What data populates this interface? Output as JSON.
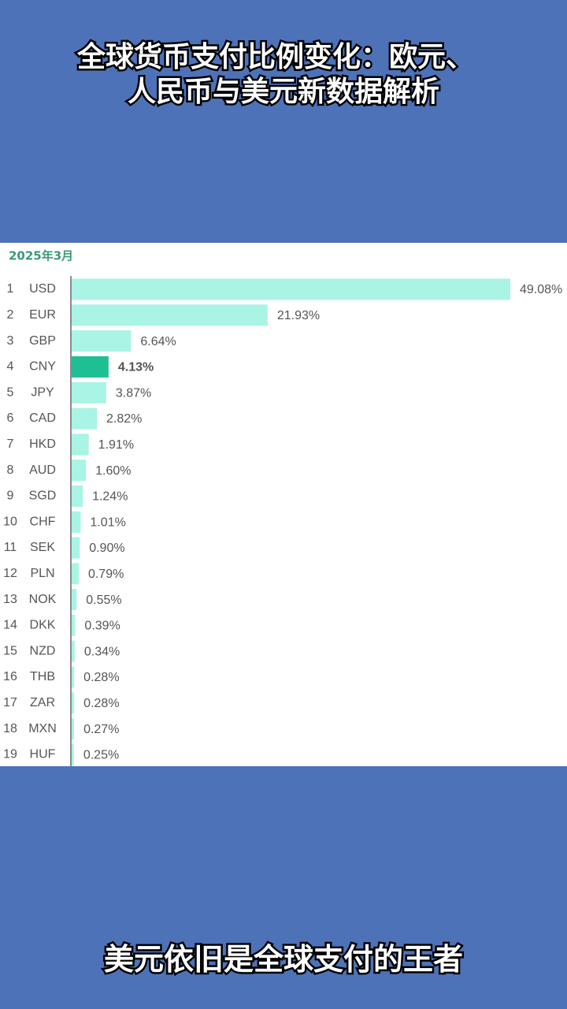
{
  "header": {
    "title_lines": [
      "全球货币支付比例变化：欧元、",
      "人民币与美元新数据解析"
    ]
  },
  "chart_data": {
    "type": "bar",
    "orientation": "horizontal",
    "title": "2025年3月",
    "ranks": [
      1,
      2,
      3,
      4,
      5,
      6,
      7,
      8,
      9,
      10,
      11,
      12,
      13,
      14,
      15,
      16,
      17,
      18,
      19
    ],
    "categories": [
      "USD",
      "EUR",
      "GBP",
      "CNY",
      "JPY",
      "CAD",
      "HKD",
      "AUD",
      "SGD",
      "CHF",
      "SEK",
      "PLN",
      "NOK",
      "DKK",
      "NZD",
      "THB",
      "ZAR",
      "MXN",
      "HUF"
    ],
    "values": [
      49.08,
      21.93,
      6.64,
      4.13,
      3.87,
      2.82,
      1.91,
      1.6,
      1.24,
      1.01,
      0.9,
      0.79,
      0.55,
      0.39,
      0.34,
      0.28,
      0.28,
      0.27,
      0.25
    ],
    "value_labels": [
      "49.08%",
      "21.93%",
      "6.64%",
      "4.13%",
      "3.87%",
      "2.82%",
      "1.91%",
      "1.60%",
      "1.24%",
      "1.01%",
      "0.90%",
      "0.79%",
      "0.55%",
      "0.39%",
      "0.34%",
      "0.28%",
      "0.28%",
      "0.27%",
      "0.25%"
    ],
    "colors": [
      "#a9f4e4",
      "#a9f4e4",
      "#a9f4e4",
      "#1fbf94",
      "#a9f4e4",
      "#a9f4e4",
      "#a9f4e4",
      "#a9f4e4",
      "#a9f4e4",
      "#a9f4e4",
      "#a9f4e4",
      "#a9f4e4",
      "#a9f4e4",
      "#a9f4e4",
      "#a9f4e4",
      "#a9f4e4",
      "#a9f4e4",
      "#a9f4e4",
      "#a9f4e4"
    ]
  },
  "caption": "美元依旧是全球支付的王者"
}
